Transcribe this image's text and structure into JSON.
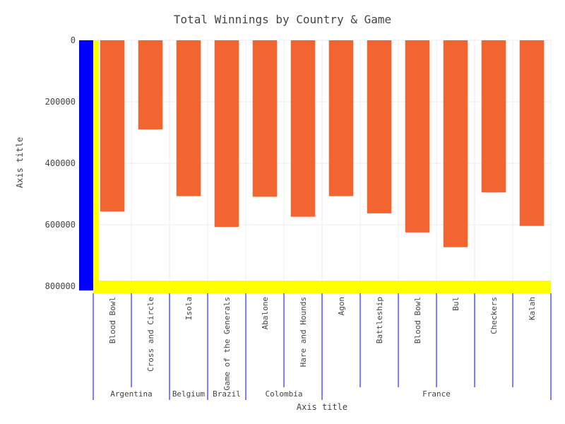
{
  "chart_data": {
    "type": "bar",
    "title": "Total Winnings by Country & Game",
    "xlabel": "Axis title",
    "ylabel": "Axis title",
    "ylim": [
      0,
      800000
    ],
    "y_reversed": true,
    "yticks": [
      "0",
      "200000",
      "400000",
      "600000",
      "800000"
    ],
    "grid": true,
    "bar_color": "#f26430",
    "x_axis_color": "#ffff00",
    "y_axis_color": "#0000ff",
    "divider_color": "#0000ff",
    "categories": [
      {
        "country": "Argentina",
        "game": "Blood Bowl"
      },
      {
        "country": "Argentina",
        "game": "Cross and Circle"
      },
      {
        "country": "Belgium",
        "game": "Isola"
      },
      {
        "country": "Brazil",
        "game": "Game of the Generals"
      },
      {
        "country": "Colombia",
        "game": "Abalone"
      },
      {
        "country": "Colombia",
        "game": "Hare and Hounds"
      },
      {
        "country": "France",
        "game": "Agon"
      },
      {
        "country": "France",
        "game": "Battleship"
      },
      {
        "country": "France",
        "game": "Blood Bowl"
      },
      {
        "country": "France",
        "game": "Bul"
      },
      {
        "country": "France",
        "game": "Checkers"
      },
      {
        "country": "France",
        "game": "Kalah"
      }
    ],
    "values": [
      557000,
      290000,
      507000,
      607000,
      509000,
      574000,
      507000,
      563000,
      625000,
      673000,
      495000,
      604000
    ],
    "groups": [
      "Argentina",
      "Belgium",
      "Brazil",
      "Colombia",
      "France"
    ]
  }
}
